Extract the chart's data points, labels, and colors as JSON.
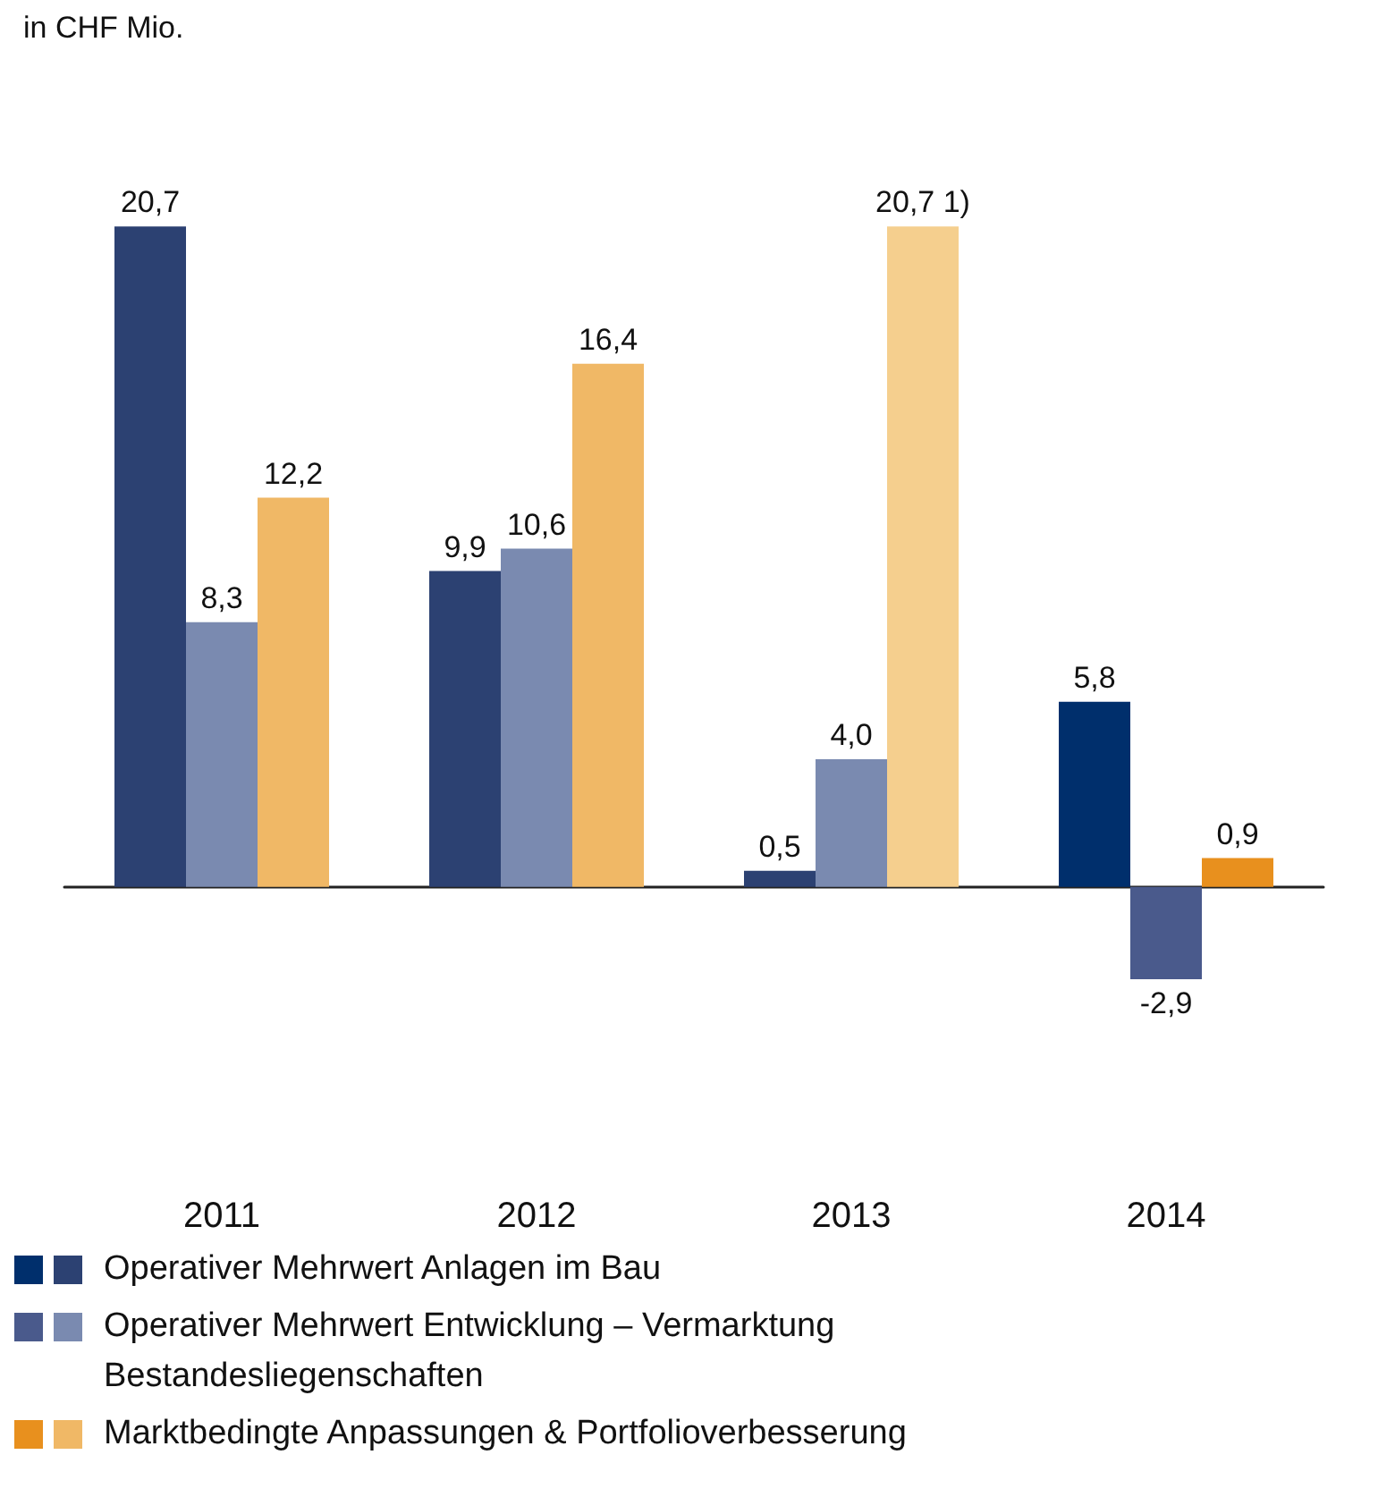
{
  "chart_data": {
    "type": "bar",
    "annotations": [
      "in CHF Mio."
    ],
    "categories": [
      "2011",
      "2012",
      "2013",
      "2014"
    ],
    "series": [
      {
        "name": "Operativer Mehrwert Anlagen im Bau",
        "colors": [
          "#2c4172",
          "#2c4172",
          "#2c4172",
          "#002f6c"
        ],
        "values": [
          20.7,
          9.9,
          0.5,
          5.8
        ],
        "value_labels": [
          "20,7",
          "9,9",
          "0,5",
          "5,8"
        ]
      },
      {
        "name": "Operativer Mehrwert Entwicklung – Vermarktung Bestandesliegenschaften",
        "colors": [
          "#7a8ab0",
          "#7a8ab0",
          "#7a8ab0",
          "#4a5a8c"
        ],
        "values": [
          8.3,
          10.6,
          4.0,
          -2.9
        ],
        "value_labels": [
          "8,3",
          "10,6",
          "4,0",
          "-2,9"
        ]
      },
      {
        "name": "Marktbedingte Anpassungen & Portfolioverbesserung",
        "colors": [
          "#f0b866",
          "#f0b866",
          "#f5cf8e",
          "#e8901e"
        ],
        "values": [
          12.2,
          16.4,
          20.7,
          0.9
        ],
        "value_labels": [
          "12,2",
          "16,4",
          "20,7 1)",
          "0,9"
        ]
      }
    ],
    "legend": "bottom"
  }
}
